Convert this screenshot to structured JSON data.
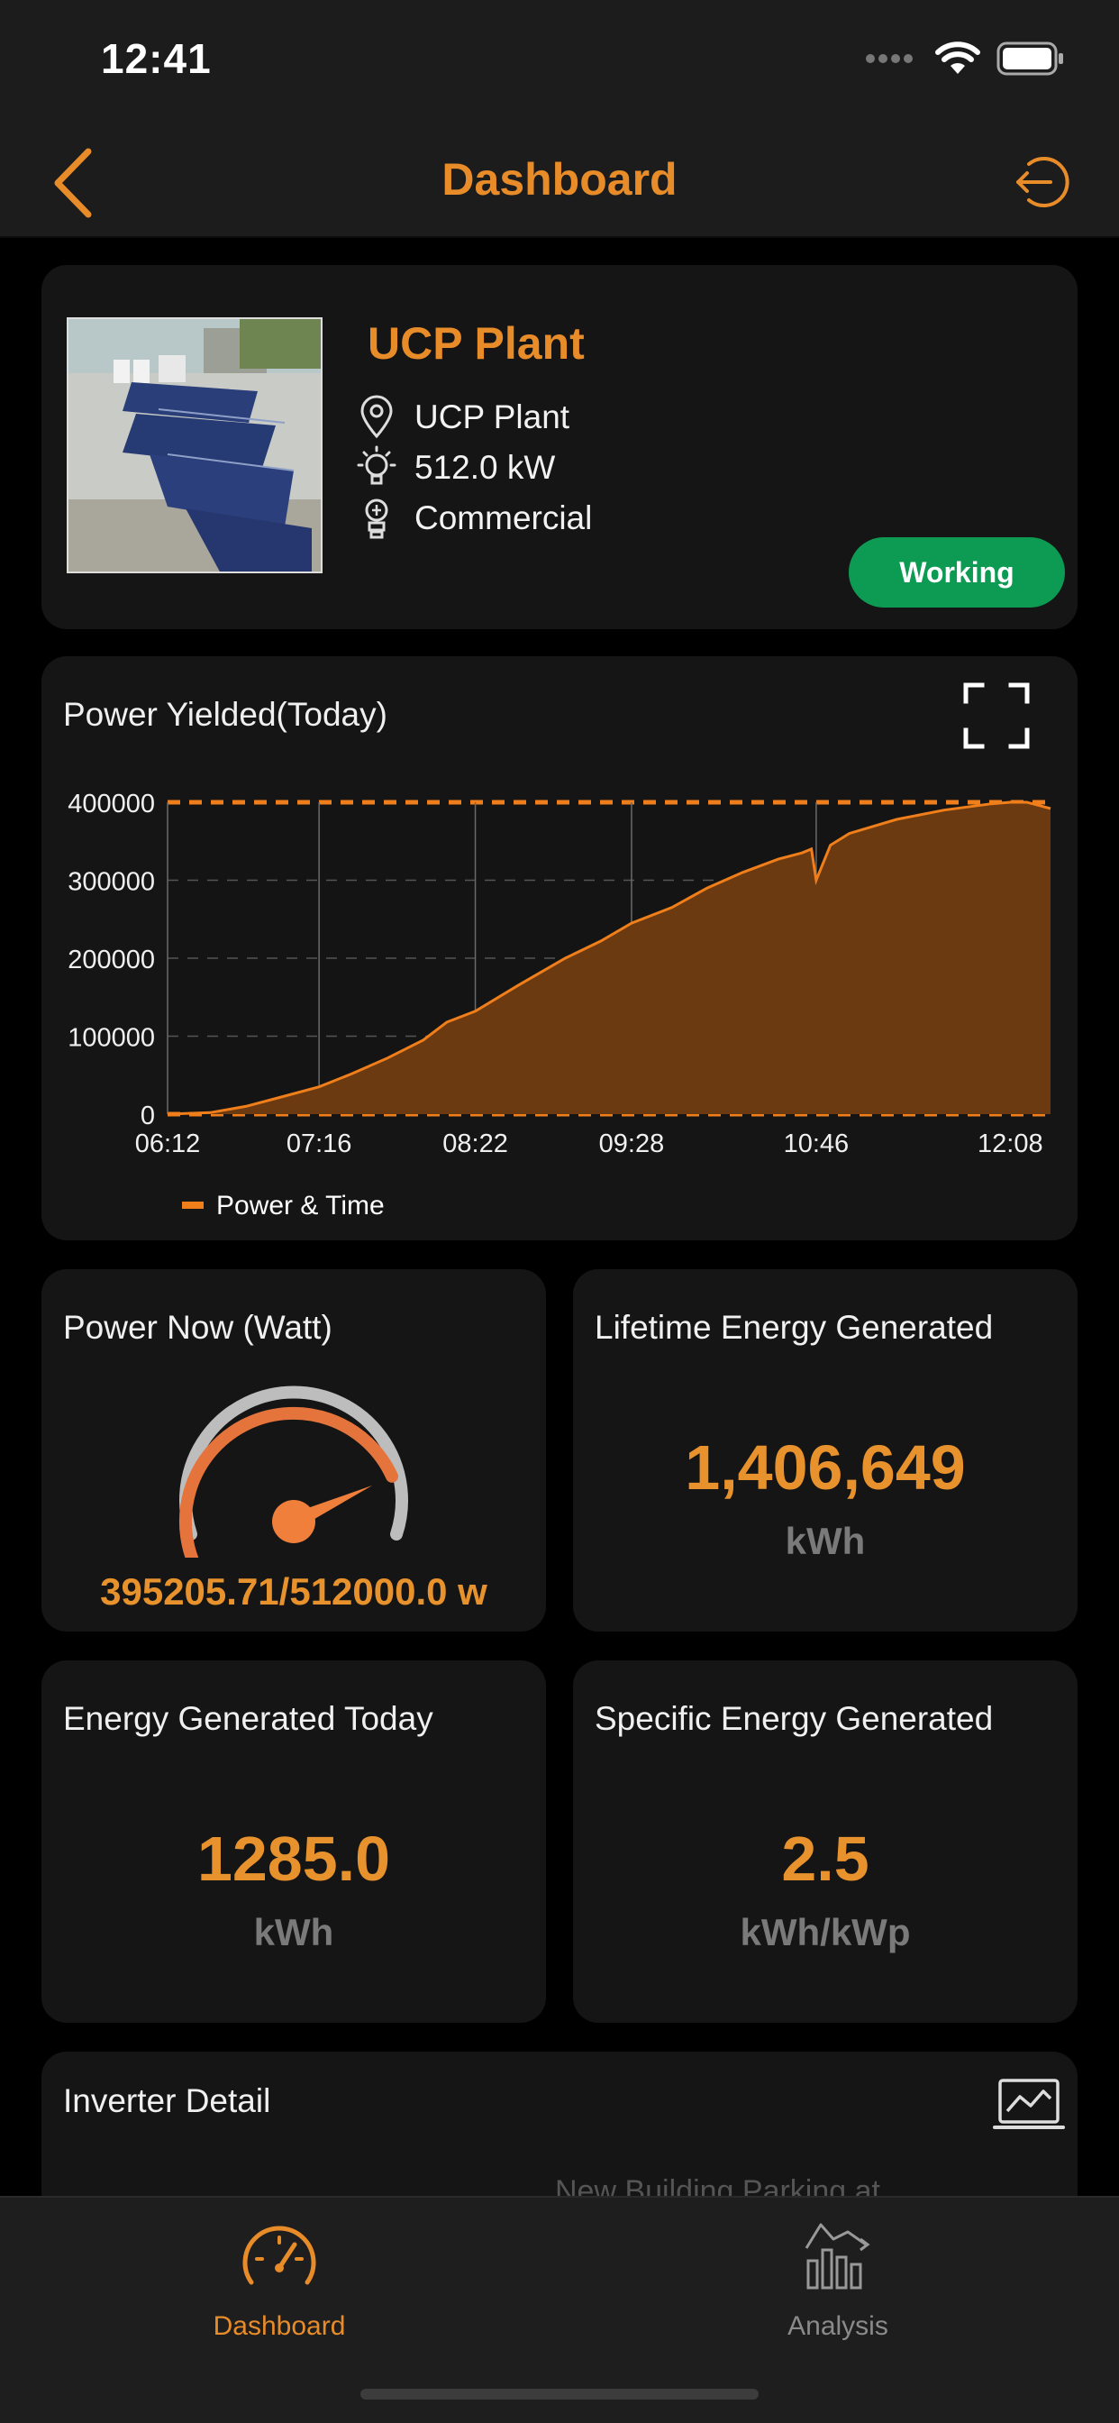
{
  "status_bar": {
    "time": "12:41"
  },
  "nav": {
    "title": "Dashboard"
  },
  "plant": {
    "name": "UCP Plant",
    "location": "UCP Plant",
    "capacity": "512.0 kW",
    "type": "Commercial",
    "status": "Working"
  },
  "power_chart": {
    "title": "Power Yielded(Today)",
    "legend": "Power & Time"
  },
  "chart_data": {
    "type": "area",
    "title": "Power Yielded(Today)",
    "xlabel": "",
    "ylabel": "",
    "x_tick_labels": [
      "06:12",
      "07:16",
      "08:22",
      "09:28",
      "10:46",
      "12:08"
    ],
    "y_tick_labels": [
      "0",
      "100000",
      "200000",
      "300000",
      "400000"
    ],
    "ylim": [
      0,
      400000
    ],
    "grid": true,
    "legend_position": "bottom-left",
    "series": [
      {
        "name": "Power & Time",
        "color": "#f07f1b",
        "x": [
          "06:12",
          "06:30",
          "06:45",
          "07:00",
          "07:16",
          "07:30",
          "07:45",
          "08:00",
          "08:10",
          "08:22",
          "08:40",
          "09:00",
          "09:15",
          "09:28",
          "09:45",
          "10:00",
          "10:15",
          "10:30",
          "10:40",
          "10:44",
          "10:46",
          "10:52",
          "11:00",
          "11:20",
          "11:40",
          "12:00",
          "12:08",
          "12:15",
          "12:25"
        ],
        "y": [
          0,
          2000,
          10000,
          22000,
          35000,
          52000,
          72000,
          95000,
          118000,
          132000,
          165000,
          200000,
          222000,
          245000,
          265000,
          290000,
          310000,
          327000,
          335000,
          340000,
          300000,
          345000,
          360000,
          378000,
          390000,
          398000,
          400000,
          400000,
          392000
        ]
      }
    ]
  },
  "power_now": {
    "title": "Power Now (Watt)",
    "value": "395205.71/512000.0 w",
    "fraction": 0.772
  },
  "lifetime": {
    "title": "Lifetime Energy Generated",
    "value": "1,406,649",
    "unit": "kWh"
  },
  "today": {
    "title": "Energy Generated Today",
    "value": "1285.0",
    "unit": "kWh"
  },
  "specific": {
    "title": "Specific Energy Generated",
    "value": "2.5",
    "unit": "kWh/kWp"
  },
  "inverter": {
    "title": "Inverter Detail",
    "partial_text": "New Building Parking at"
  },
  "tabs": [
    {
      "label": "Dashboard",
      "active": true
    },
    {
      "label": "Analysis",
      "active": false
    }
  ],
  "colors": {
    "accent": "#e88c2a",
    "status_green": "#0d9b54",
    "chart_fill": "#6b3a10"
  }
}
